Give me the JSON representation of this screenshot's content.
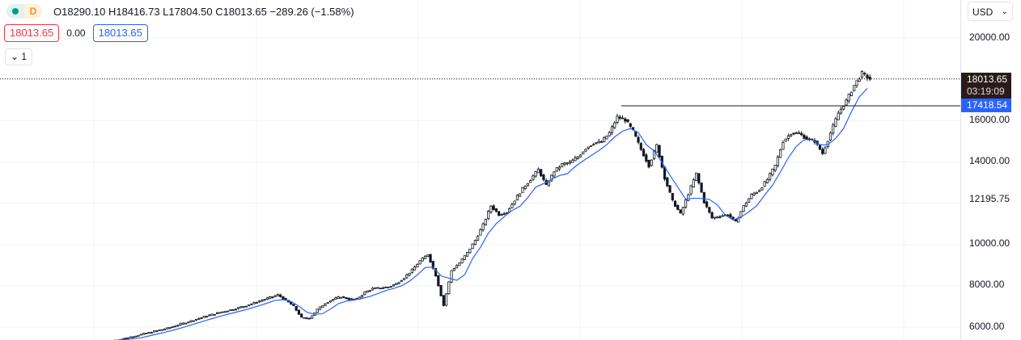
{
  "legend": {
    "interval": "D",
    "ohlc": "O18290.10 H18416.73 L17804.50 C18013.65 −289.26 (−1.58%)",
    "bid": "18013.65",
    "spread": "0.00",
    "ask": "18013.65",
    "indicator_toggle": "1"
  },
  "currency": "USD",
  "price_labels": {
    "last": "18013.65",
    "countdown": "03:19:09",
    "line": "17418.54"
  },
  "colors": {
    "up": "#131722",
    "ma": "#2962ff",
    "bid": "#f23645",
    "ask": "#2962ff",
    "last_bg": "#2a1a1a",
    "line_bg": "#2962ff"
  },
  "chart_data": {
    "type": "candlestick",
    "y_axis": {
      "ticks": [
        "20000.00",
        "16000.00",
        "14000.00",
        "12195.75",
        "10000.00",
        "8000.00",
        "6000.00"
      ],
      "range": [
        5400,
        20600
      ],
      "scale": "linear"
    },
    "grid": true,
    "close": [
      5400,
      5490,
      5580,
      5670,
      5760,
      5850,
      5940,
      6060,
      6180,
      6300,
      6420,
      6540,
      6640,
      6740,
      6830,
      6930,
      7040,
      7170,
      7300,
      7430,
      7560,
      7300,
      7000,
      6450,
      6420,
      6850,
      7150,
      7350,
      7470,
      7350,
      7350,
      7680,
      7860,
      7900,
      7940,
      8100,
      8390,
      8760,
      9200,
      9520,
      8500,
      7050,
      8740,
      9100,
      9600,
      10200,
      10950,
      11870,
      11450,
      11570,
      12150,
      12700,
      13150,
      13630,
      12840,
      13550,
      13880,
      13970,
      14240,
      14660,
      14910,
      14970,
      15400,
      16170,
      16040,
      15480,
      14600,
      13820,
      14800,
      13230,
      12100,
      11470,
      12450,
      13430,
      12060,
      11280,
      11380,
      11450,
      11080,
      11860,
      12400,
      12640,
      13150,
      13820,
      15000,
      15390,
      15380,
      15120,
      15000,
      14410,
      15390,
      16360,
      16950,
      17700,
      18290,
      18013.65
    ],
    "horizontal_line": 16700,
    "last_price": 18013.65
  }
}
